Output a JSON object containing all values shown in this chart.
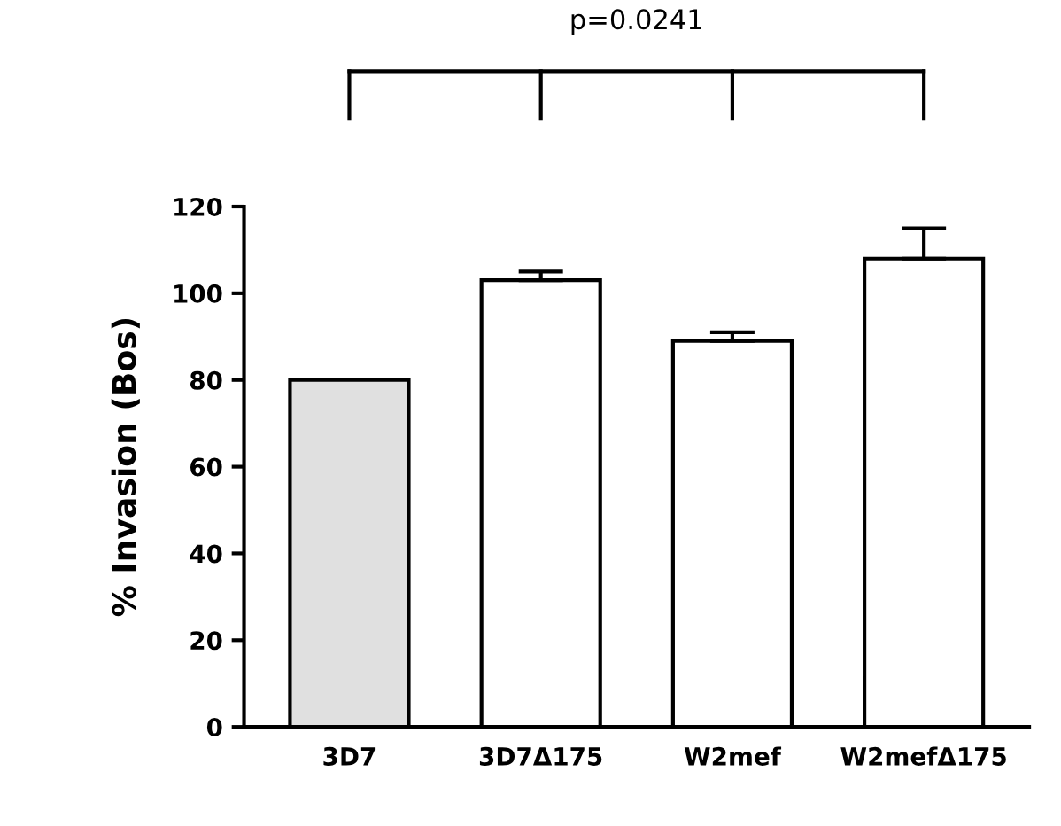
{
  "chart_data": {
    "type": "bar",
    "ylabel": "% Invasion (Bos)",
    "categories": [
      "3D7",
      "3D7Δ175",
      "W2mef",
      "W2mefΔ175"
    ],
    "values": [
      80,
      103,
      89,
      108
    ],
    "errors": [
      null,
      2,
      2,
      7
    ],
    "colors": [
      "#e0e0e0",
      "#ffffff",
      "#ffffff",
      "#ffffff"
    ],
    "ylim": [
      0,
      120
    ],
    "yticks": [
      0,
      20,
      40,
      60,
      80,
      100,
      120
    ],
    "grid": false,
    "annotations": [
      "p=0.0241"
    ]
  }
}
